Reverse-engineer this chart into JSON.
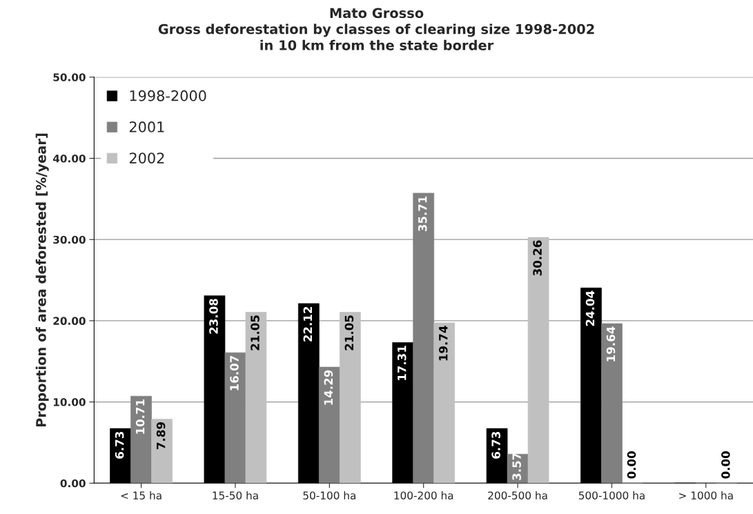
{
  "chart_data": {
    "type": "bar",
    "title": "Mato Grosso\nGross deforestation by classes of clearing size 1998-2002\nin 10 km from the state border",
    "ylabel": "Proportion of area deforested [%/year]",
    "categories": [
      "< 15 ha",
      "15-50 ha",
      "50-100 ha",
      "100-200 ha",
      "200-500 ha",
      "500-1000 ha",
      "> 1000 ha"
    ],
    "series": [
      {
        "name": "1998-2000",
        "color": "#000000",
        "values": [
          6.73,
          23.08,
          22.12,
          17.31,
          6.73,
          24.04,
          0
        ],
        "value_labels": [
          "6.73",
          "23.08",
          "22.12",
          "17.31",
          "6.73",
          "24.04",
          null
        ]
      },
      {
        "name": "2001",
        "color": "#808080",
        "values": [
          10.71,
          16.07,
          14.29,
          35.71,
          3.57,
          19.64,
          0
        ],
        "value_labels": [
          "10.71",
          "16.07",
          "14.29",
          "35.71",
          "3.57",
          "19.64",
          null
        ]
      },
      {
        "name": "2002",
        "color": "#c0c0c0",
        "values": [
          7.89,
          21.05,
          21.05,
          19.74,
          30.26,
          0,
          0
        ],
        "value_labels": [
          "7.89",
          "21.05",
          "21.05",
          "19.74",
          "30.26",
          "0.00",
          "0.00"
        ]
      }
    ],
    "ylim": [
      0,
      50
    ],
    "yticks": [
      {
        "value": 0,
        "label": "0.00"
      },
      {
        "value": 10,
        "label": "10.00"
      },
      {
        "value": 20,
        "label": "20.00"
      },
      {
        "value": 30,
        "label": "30.00"
      },
      {
        "value": 40,
        "label": "40.00"
      },
      {
        "value": 50,
        "label": "50.00"
      }
    ],
    "grid": "y",
    "legend": "top left"
  }
}
